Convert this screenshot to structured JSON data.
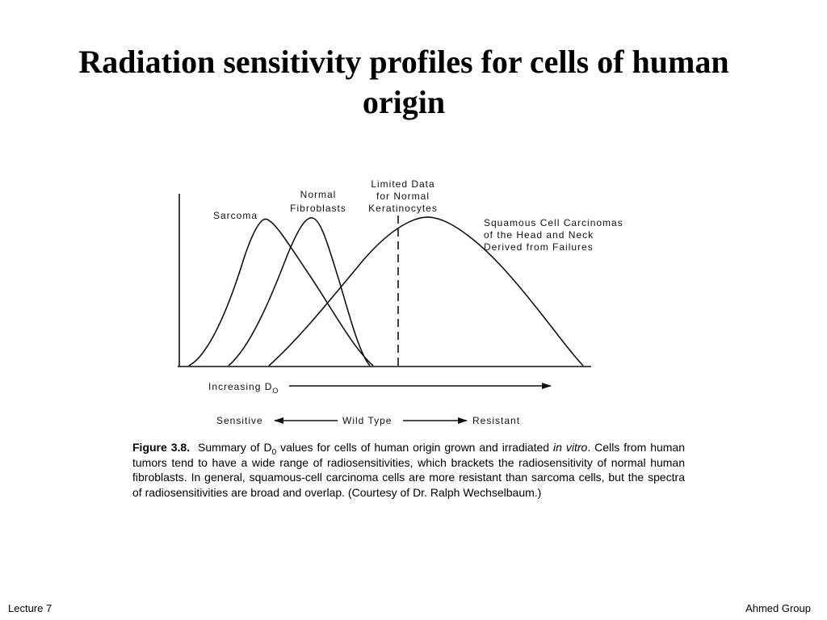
{
  "slide": {
    "title": "Radiation sensitivity profiles for cells of human origin",
    "footer_left": "Lecture 7",
    "footer_right": "Ahmed Group"
  },
  "figure": {
    "labels": {
      "sarcoma": "Sarcoma",
      "normal_fibroblasts_line1": "Normal",
      "normal_fibroblasts_line2": "Fibroblasts",
      "keratinocytes_line1": "Limited Data",
      "keratinocytes_line2": "for Normal",
      "keratinocytes_line3": "Keratinocytes",
      "squamous_line1": "Squamous Cell Carcinomas",
      "squamous_line2": "of the Head and Neck",
      "squamous_line3": "Derived from Failures"
    },
    "axis": {
      "increasing_prefix": "Increasing D",
      "increasing_subscript": "O",
      "sensitive": "Sensitive",
      "wild_type": "Wild Type",
      "resistant": "Resistant"
    },
    "caption": {
      "label": "Figure 3.8.",
      "part1": "Summary of D",
      "subscript": "0",
      "part2": " values for cells of human origin grown and irradiated ",
      "italic": "in vitro",
      "part3": ". Cells from human tumors tend to have a wide range of radiosensitivities, which brackets the radiosensitivity of normal human fibroblasts. In general, squamous-cell carcinoma cells are more resistant than sarcoma cells, but the spectra of radiosensitivities are broad and overlap. (Courtesy of Dr. Ralph Wechselbaum.)"
    }
  }
}
